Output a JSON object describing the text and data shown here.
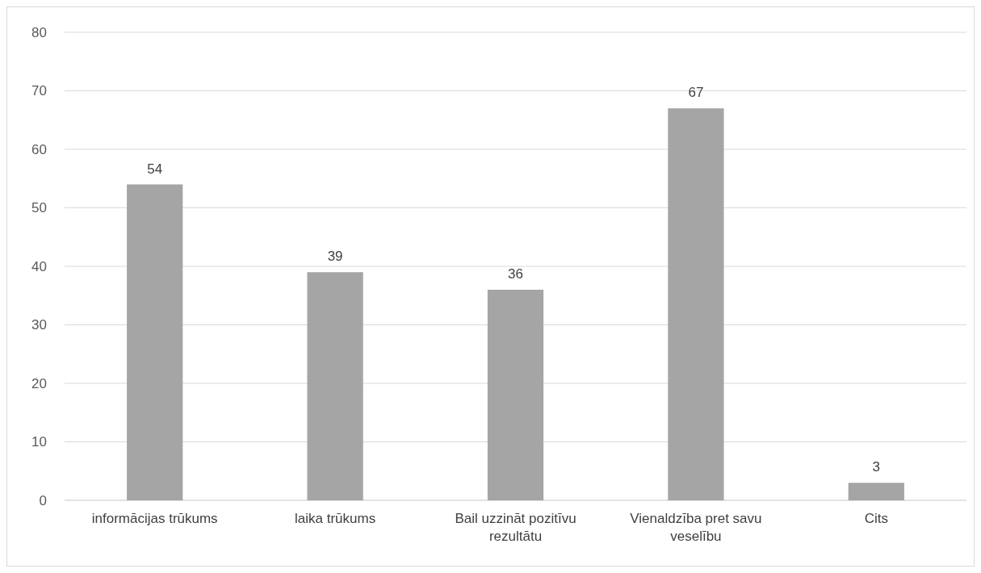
{
  "chart_data": {
    "type": "bar",
    "categories": [
      "informācijas trūkums",
      "laika trūkums",
      "Bail uzzināt pozitīvu rezultātu",
      "Vienaldzība pret savu veselību",
      "Cits"
    ],
    "values": [
      54,
      39,
      36,
      67,
      3
    ],
    "color": "#a5a5a5",
    "ylim": [
      0,
      80
    ],
    "yticks": [
      0,
      10,
      20,
      30,
      40,
      50,
      60,
      70,
      80
    ],
    "grid": "y",
    "data_labels": true
  }
}
